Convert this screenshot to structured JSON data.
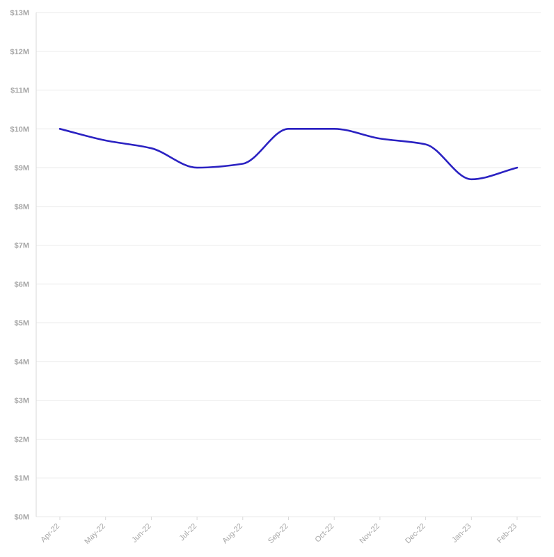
{
  "chart_data": {
    "type": "line",
    "title": "",
    "xlabel": "",
    "ylabel": "",
    "categories": [
      "Apr-22",
      "May-22",
      "Jun-22",
      "Jul-22",
      "Aug-22",
      "Sep-22",
      "Oct-22",
      "Nov-22",
      "Dec-22",
      "Jan-23",
      "Feb-23"
    ],
    "series": [
      {
        "values": [
          10000000,
          9700000,
          9500000,
          9000000,
          9100000,
          10000000,
          10000000,
          9750000,
          9600000,
          8700000,
          9000000
        ],
        "color": "#2b22c2"
      }
    ],
    "yticks": [
      "$0M",
      "$1M",
      "$2M",
      "$3M",
      "$4M",
      "$5M",
      "$6M",
      "$7M",
      "$8M",
      "$9M",
      "$10M",
      "$11M",
      "$12M",
      "$13M"
    ],
    "ylim": [
      0,
      13000000
    ],
    "grid": true,
    "legend": "none"
  }
}
